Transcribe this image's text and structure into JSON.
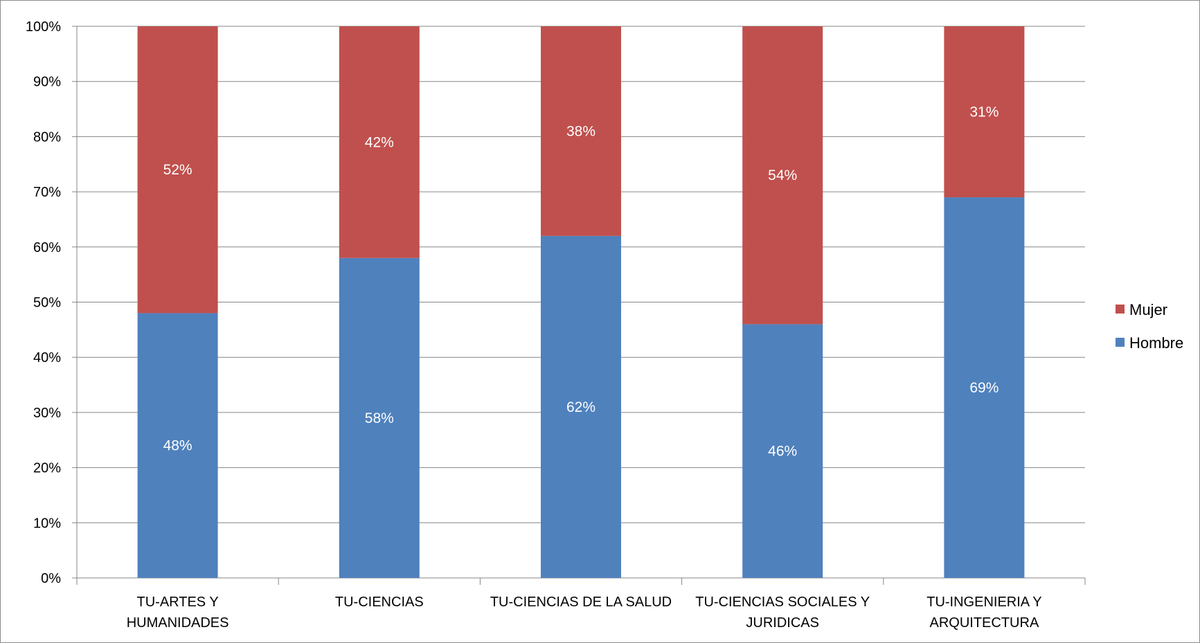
{
  "chart_data": {
    "type": "bar",
    "stacked": true,
    "percent": true,
    "categories": [
      [
        "TU-ARTES Y",
        "HUMANIDADES"
      ],
      [
        "TU-CIENCIAS"
      ],
      [
        "TU-CIENCIAS DE LA SALUD"
      ],
      [
        "TU-CIENCIAS SOCIALES Y",
        "JURIDICAS"
      ],
      [
        "TU-INGENIERIA Y",
        "ARQUITECTURA"
      ]
    ],
    "series": [
      {
        "name": "Hombre",
        "color": "#4f81bd",
        "values": [
          48,
          58,
          62,
          46,
          69
        ],
        "labels": [
          "48%",
          "58%",
          "62%",
          "46%",
          "69%"
        ]
      },
      {
        "name": "Mujer",
        "color": "#c0504d",
        "values": [
          52,
          42,
          38,
          54,
          31
        ],
        "labels": [
          "52%",
          "42%",
          "38%",
          "54%",
          "31%"
        ]
      }
    ],
    "yticks": [
      "0%",
      "10%",
      "20%",
      "30%",
      "40%",
      "50%",
      "60%",
      "70%",
      "80%",
      "90%",
      "100%"
    ],
    "ylim": [
      0,
      100
    ],
    "grid": true,
    "legend_position": "right",
    "legend_order": [
      "Mujer",
      "Hombre"
    ]
  }
}
